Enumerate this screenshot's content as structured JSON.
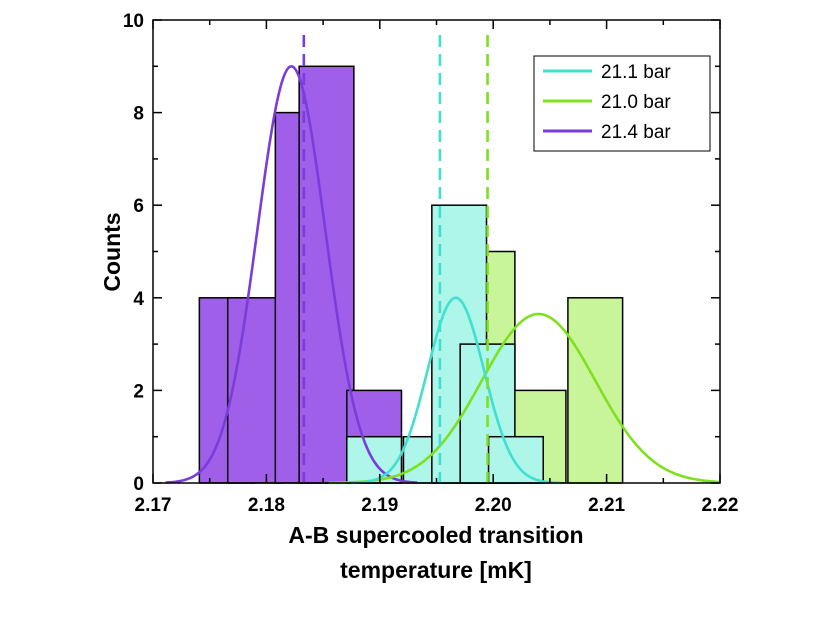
{
  "chart_data": {
    "type": "bar",
    "title": "",
    "xlabel_line1": "A-B supercooled transition",
    "xlabel_line2": "temperature [mK]",
    "ylabel": "Counts",
    "xlim": [
      2.17,
      2.22
    ],
    "ylim": [
      0,
      10
    ],
    "x_ticks": [
      "2.17",
      "2.18",
      "2.19",
      "2.20",
      "2.21",
      "2.22"
    ],
    "y_ticks": [
      "0",
      "2",
      "4",
      "6",
      "8",
      "10"
    ],
    "legend_position": "top-right",
    "bin_width": 0.005,
    "series": [
      {
        "name": "21.1 bar",
        "color": "#40e0d0",
        "fill": "#aef5ea",
        "histogram": [
          {
            "center": 2.1895,
            "count": 1
          },
          {
            "center": 2.1945,
            "count": 1
          },
          {
            "center": 2.197,
            "count": 6
          },
          {
            "center": 2.1995,
            "count": 3
          },
          {
            "center": 2.202,
            "count": 1
          }
        ],
        "fit": {
          "mean": 2.1967,
          "sigma": 0.0025,
          "peak": 4.0
        },
        "mean_line": 2.1953
      },
      {
        "name": "21.0 bar",
        "color": "#7fe01e",
        "fill": "#c8f59a",
        "histogram": [
          {
            "center": 2.1995,
            "count": 5
          },
          {
            "center": 2.204,
            "count": 2
          },
          {
            "center": 2.209,
            "count": 4
          }
        ],
        "fit": {
          "mean": 2.204,
          "sigma": 0.005,
          "peak": 3.65
        },
        "mean_line": 2.1995
      },
      {
        "name": "21.4 bar",
        "color": "#7a3ddb",
        "fill": "#9f5fe8",
        "histogram": [
          {
            "center": 2.1765,
            "count": 4
          },
          {
            "center": 2.179,
            "count": 4
          },
          {
            "center": 2.1832,
            "count": 8
          },
          {
            "center": 2.1853,
            "count": 9
          },
          {
            "center": 2.1895,
            "count": 2
          }
        ],
        "fit": {
          "mean": 2.1822,
          "sigma": 0.003,
          "peak": 9.0
        },
        "mean_line": 2.1833
      }
    ]
  }
}
